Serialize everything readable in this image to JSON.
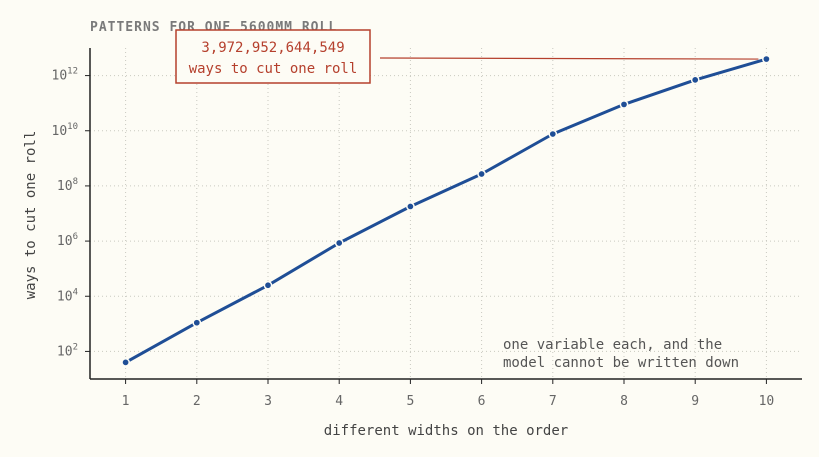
{
  "chart_data": {
    "type": "line",
    "title": "PATTERNS FOR ONE 5600MM ROLL",
    "xlabel": "different widths on the order",
    "ylabel": "ways to cut one roll",
    "y_scale": "log",
    "ylim": [
      10,
      10000000000000
    ],
    "xlim": [
      0.5,
      10.5
    ],
    "grid": true,
    "x_ticks": [
      1,
      2,
      3,
      4,
      5,
      6,
      7,
      8,
      9,
      10
    ],
    "y_ticks": [
      {
        "base": "10",
        "exp": "2",
        "value": 100
      },
      {
        "base": "10",
        "exp": "4",
        "value": 10000
      },
      {
        "base": "10",
        "exp": "6",
        "value": 1000000
      },
      {
        "base": "10",
        "exp": "8",
        "value": 100000000
      },
      {
        "base": "10",
        "exp": "10",
        "value": 10000000000
      },
      {
        "base": "10",
        "exp": "12",
        "value": 1000000000000
      }
    ],
    "series": [
      {
        "color": "#1f4e96",
        "x": [
          1,
          2,
          3,
          4,
          5,
          6,
          7,
          8,
          9,
          10
        ],
        "y": [
          40,
          1100,
          25000,
          850000,
          18000000,
          270000000,
          7600000000,
          90000000000,
          700000000000,
          3972952644549
        ]
      }
    ],
    "callout": {
      "line1": "3,972,952,644,549",
      "line2": "ways to cut one roll",
      "color": "#b5402d",
      "target_x": 10
    },
    "note": {
      "line1": "one variable each, and the",
      "line2": "model cannot be written down"
    }
  }
}
